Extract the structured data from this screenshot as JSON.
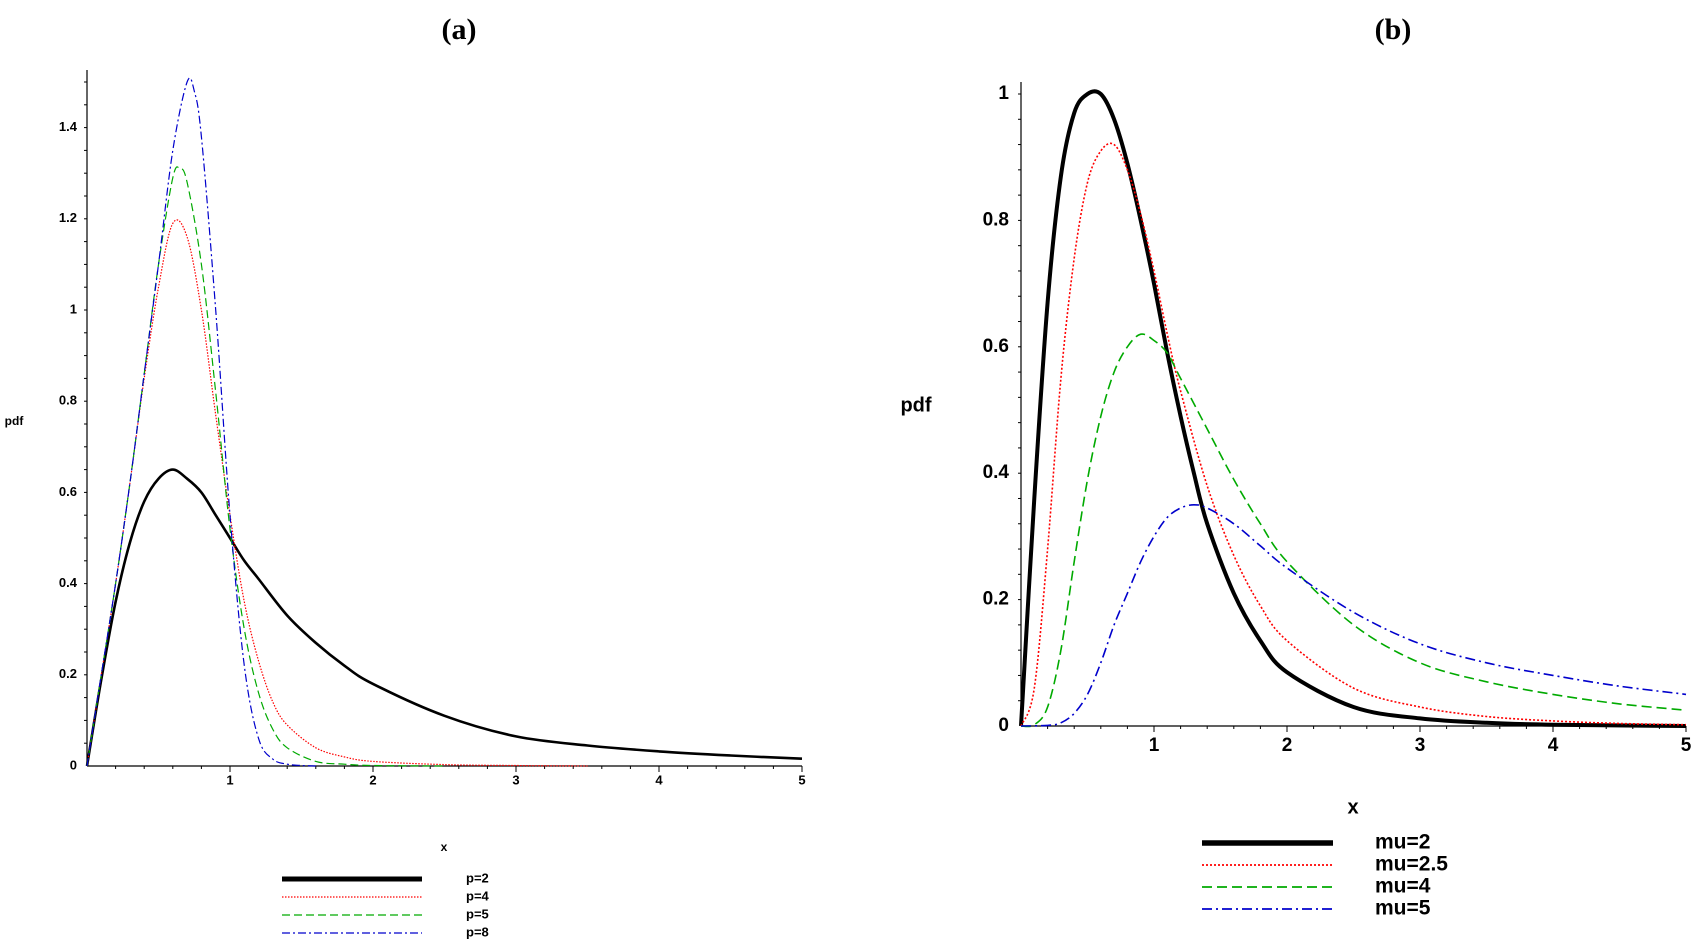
{
  "chart_data": [
    {
      "type": "line",
      "title": "(a)",
      "xlabel": "x",
      "ylabel": "pdf",
      "xlim": [
        0,
        5
      ],
      "ylim": [
        0,
        1.5
      ],
      "x_ticks": [
        1,
        2,
        3,
        4,
        5
      ],
      "y_ticks": [
        0,
        0.2,
        0.4,
        0.6,
        0.8,
        1,
        1.2,
        1.4
      ],
      "grid": false,
      "legend_position": "bottom",
      "series": [
        {
          "name": "p=2",
          "color": "#000000",
          "style": "solid",
          "x": [
            0,
            0.1,
            0.2,
            0.3,
            0.4,
            0.5,
            0.6,
            0.7,
            0.8,
            0.9,
            1.0,
            1.1,
            1.2,
            1.4,
            1.6,
            1.8,
            2.0,
            2.5,
            3.0,
            3.5,
            4.0,
            4.5,
            5.0
          ],
          "y": [
            0,
            0.19,
            0.36,
            0.49,
            0.58,
            0.63,
            0.65,
            0.63,
            0.6,
            0.55,
            0.5,
            0.45,
            0.41,
            0.33,
            0.27,
            0.22,
            0.18,
            0.11,
            0.065,
            0.045,
            0.032,
            0.023,
            0.016
          ]
        },
        {
          "name": "p=4",
          "color": "#ff0000",
          "style": "dotted",
          "x": [
            0,
            0.1,
            0.2,
            0.3,
            0.4,
            0.5,
            0.6,
            0.7,
            0.8,
            0.9,
            1.0,
            1.1,
            1.2,
            1.3,
            1.4,
            1.6,
            1.8,
            2.0,
            2.5,
            3.0,
            3.5
          ],
          "y": [
            0,
            0.2,
            0.4,
            0.62,
            0.85,
            1.05,
            1.19,
            1.16,
            1.0,
            0.77,
            0.55,
            0.36,
            0.23,
            0.14,
            0.09,
            0.04,
            0.02,
            0.01,
            0.003,
            0.001,
            0
          ]
        },
        {
          "name": "p=5",
          "color": "#00aa00",
          "style": "dashed",
          "x": [
            0,
            0.1,
            0.2,
            0.3,
            0.4,
            0.5,
            0.6,
            0.65,
            0.7,
            0.8,
            0.9,
            1.0,
            1.1,
            1.2,
            1.3,
            1.4,
            1.6,
            1.8,
            2.0,
            2.5
          ],
          "y": [
            0,
            0.2,
            0.4,
            0.62,
            0.86,
            1.1,
            1.29,
            1.31,
            1.28,
            1.1,
            0.82,
            0.52,
            0.3,
            0.16,
            0.08,
            0.04,
            0.01,
            0.004,
            0.001,
            0
          ]
        },
        {
          "name": "p=8",
          "color": "#0000cc",
          "style": "dashdot",
          "x": [
            0,
            0.1,
            0.2,
            0.3,
            0.4,
            0.5,
            0.6,
            0.7,
            0.75,
            0.8,
            0.9,
            1.0,
            1.1,
            1.2,
            1.3,
            1.4,
            1.5,
            1.6
          ],
          "y": [
            0,
            0.2,
            0.4,
            0.62,
            0.86,
            1.1,
            1.35,
            1.5,
            1.48,
            1.38,
            1.0,
            0.55,
            0.22,
            0.06,
            0.015,
            0.004,
            0.001,
            0
          ]
        }
      ]
    },
    {
      "type": "line",
      "title": "(b)",
      "xlabel": "x",
      "ylabel": "pdf",
      "xlim": [
        0,
        5
      ],
      "ylim": [
        0,
        1.0
      ],
      "x_ticks": [
        1,
        2,
        3,
        4,
        5
      ],
      "y_ticks": [
        0,
        0.2,
        0.4,
        0.6,
        0.8,
        1
      ],
      "grid": false,
      "legend_position": "bottom",
      "series": [
        {
          "name": "mu=2",
          "color": "#000000",
          "style": "solid",
          "x": [
            0,
            0.1,
            0.2,
            0.3,
            0.4,
            0.5,
            0.6,
            0.7,
            0.8,
            0.9,
            1.0,
            1.1,
            1.2,
            1.3,
            1.4,
            1.6,
            1.8,
            2.0,
            2.5,
            3.0,
            3.5,
            4.0,
            5.0
          ],
          "y": [
            0,
            0.36,
            0.67,
            0.87,
            0.97,
            1.0,
            1.0,
            0.96,
            0.89,
            0.8,
            0.7,
            0.59,
            0.49,
            0.4,
            0.32,
            0.21,
            0.135,
            0.085,
            0.03,
            0.012,
            0.005,
            0.002,
            0
          ]
        },
        {
          "name": "mu=2.5",
          "color": "#ff0000",
          "style": "dotted",
          "x": [
            0,
            0.1,
            0.2,
            0.3,
            0.4,
            0.5,
            0.6,
            0.7,
            0.8,
            0.9,
            1.0,
            1.1,
            1.2,
            1.4,
            1.6,
            1.8,
            2.0,
            2.5,
            3.0,
            3.5,
            4.0,
            4.5,
            5.0
          ],
          "y": [
            0,
            0.06,
            0.28,
            0.55,
            0.74,
            0.86,
            0.91,
            0.92,
            0.88,
            0.81,
            0.72,
            0.62,
            0.53,
            0.38,
            0.27,
            0.19,
            0.135,
            0.06,
            0.03,
            0.015,
            0.008,
            0.004,
            0.002
          ]
        },
        {
          "name": "mu=4",
          "color": "#00aa00",
          "style": "dashed",
          "x": [
            0,
            0.1,
            0.2,
            0.3,
            0.4,
            0.5,
            0.6,
            0.7,
            0.8,
            0.9,
            1.0,
            1.1,
            1.2,
            1.4,
            1.6,
            1.8,
            2.0,
            2.5,
            3.0,
            3.5,
            4.0,
            4.5,
            5.0
          ],
          "y": [
            0,
            0.002,
            0.03,
            0.12,
            0.26,
            0.39,
            0.49,
            0.56,
            0.6,
            0.62,
            0.61,
            0.59,
            0.55,
            0.47,
            0.39,
            0.32,
            0.26,
            0.16,
            0.1,
            0.07,
            0.05,
            0.035,
            0.025
          ]
        },
        {
          "name": "mu=5",
          "color": "#0000cc",
          "style": "dashdot",
          "x": [
            0,
            0.2,
            0.3,
            0.4,
            0.5,
            0.6,
            0.7,
            0.8,
            0.9,
            1.0,
            1.1,
            1.2,
            1.3,
            1.4,
            1.6,
            1.8,
            2.0,
            2.5,
            3.0,
            3.5,
            4.0,
            4.5,
            5.0
          ],
          "y": [
            0,
            0.001,
            0.005,
            0.02,
            0.05,
            0.1,
            0.16,
            0.21,
            0.26,
            0.3,
            0.33,
            0.345,
            0.35,
            0.345,
            0.32,
            0.285,
            0.25,
            0.18,
            0.13,
            0.1,
            0.08,
            0.063,
            0.05
          ]
        }
      ]
    }
  ]
}
